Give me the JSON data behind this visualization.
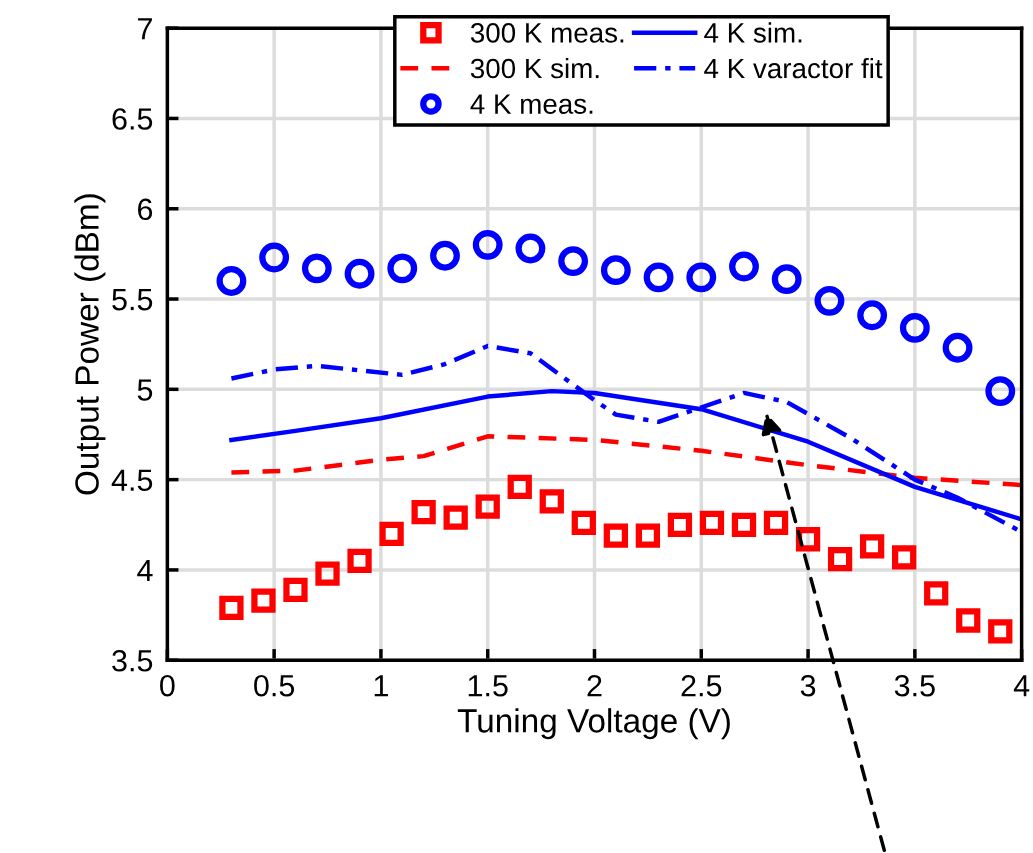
{
  "chart_data": {
    "type": "line",
    "xlabel": "Tuning Voltage (V)",
    "ylabel": "Output Power (dBm)",
    "xlim": [
      0,
      4
    ],
    "xticks": [
      0,
      0.5,
      1,
      1.5,
      2,
      2.5,
      3,
      3.5,
      4
    ],
    "ylim": [
      3.5,
      7
    ],
    "yticks": [
      3.5,
      4,
      4.5,
      5,
      5.5,
      6,
      6.5,
      7
    ],
    "grid": true,
    "legend": "top",
    "series": [
      {
        "name": "300 K meas.",
        "type": "scatter",
        "marker": "square",
        "color": "#ff0000",
        "x": [
          0.3,
          0.45,
          0.6,
          0.75,
          0.9,
          1.05,
          1.2,
          1.35,
          1.5,
          1.65,
          1.8,
          1.95,
          2.1,
          2.25,
          2.4,
          2.55,
          2.7,
          2.85,
          3.0,
          3.15,
          3.3,
          3.45,
          3.6,
          3.75,
          3.9
        ],
        "values": [
          3.79,
          3.83,
          3.89,
          3.98,
          4.05,
          4.2,
          4.32,
          4.29,
          4.35,
          4.46,
          4.38,
          4.26,
          4.19,
          4.19,
          4.25,
          4.26,
          4.25,
          4.26,
          4.17,
          4.06,
          4.13,
          4.07,
          3.87,
          3.72,
          3.66
        ]
      },
      {
        "name": "300 K sim.",
        "line_style": "dashed",
        "color": "#ff0000",
        "x": [
          0.3,
          0.6,
          1.0,
          1.2,
          1.5,
          2.0,
          2.5,
          3.0,
          3.5,
          4.0
        ],
        "values": [
          4.54,
          4.55,
          4.61,
          4.63,
          4.74,
          4.72,
          4.66,
          4.58,
          4.51,
          4.47
        ]
      },
      {
        "name": "4 K meas.",
        "type": "scatter",
        "marker": "circle",
        "color": "#0000ff",
        "x": [
          0.3,
          0.5,
          0.7,
          0.9,
          1.1,
          1.3,
          1.5,
          1.7,
          1.9,
          2.1,
          2.3,
          2.5,
          2.7,
          2.9,
          3.1,
          3.3,
          3.5,
          3.7,
          3.9
        ],
        "values": [
          5.6,
          5.73,
          5.67,
          5.64,
          5.67,
          5.74,
          5.8,
          5.78,
          5.71,
          5.66,
          5.62,
          5.62,
          5.68,
          5.61,
          5.49,
          5.41,
          5.34,
          5.23,
          4.99
        ]
      },
      {
        "name": "4 K sim.",
        "line_style": "solid",
        "color": "#0000ff",
        "x": [
          0.3,
          0.6,
          1.0,
          1.5,
          1.8,
          2.0,
          2.5,
          3.0,
          3.5,
          4.0
        ],
        "values": [
          4.72,
          4.77,
          4.84,
          4.96,
          4.99,
          4.98,
          4.89,
          4.71,
          4.46,
          4.28
        ]
      },
      {
        "name": "4 K varactor fit",
        "line_style": "dashdot",
        "color": "#0000ff",
        "x": [
          0.3,
          0.5,
          0.7,
          1.1,
          1.3,
          1.5,
          1.7,
          2.0,
          2.1,
          2.3,
          2.7,
          2.9,
          3.2,
          3.5,
          3.7,
          4.0
        ],
        "values": [
          5.06,
          5.11,
          5.13,
          5.08,
          5.14,
          5.24,
          5.2,
          4.94,
          4.86,
          4.82,
          4.98,
          4.93,
          4.73,
          4.5,
          4.4,
          4.21
        ]
      }
    ]
  }
}
